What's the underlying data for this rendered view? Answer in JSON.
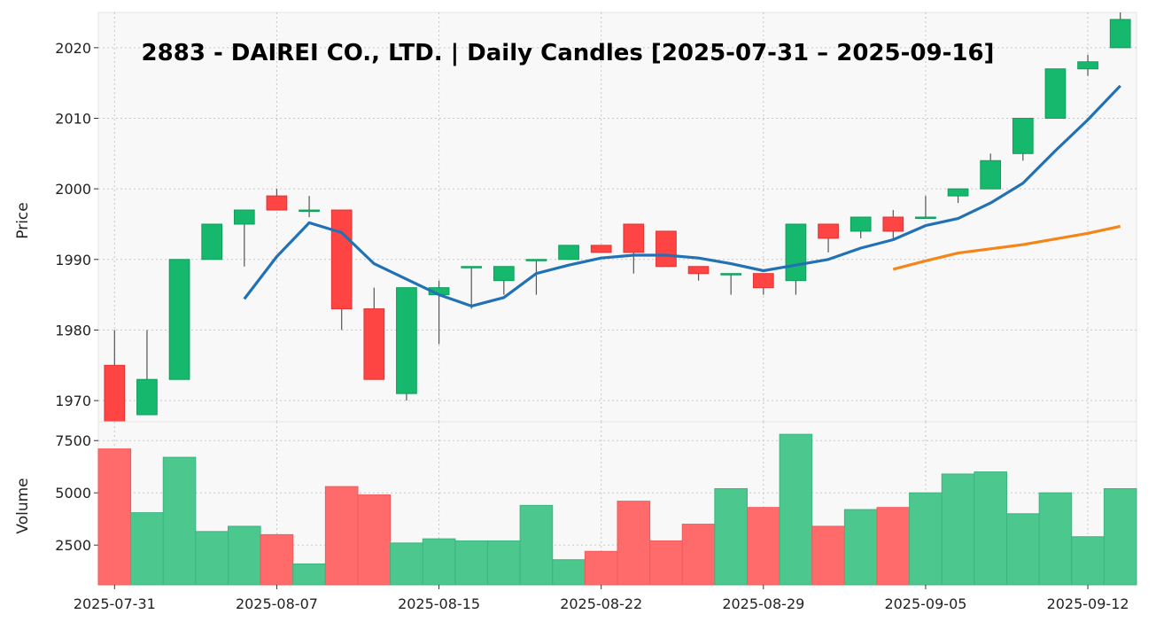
{
  "chart_data": {
    "type": "candlestick",
    "title": "2883 - DAIREI CO., LTD. | Daily Candles [2025-07-31 – 2025-09-16]",
    "ylabel": "Price",
    "volume_label": "Volume",
    "colors": {
      "up": "#16b86d",
      "down": "#ff4444",
      "up_volume": "#4cc78e",
      "down_volume": "#ff6b6b",
      "ma_short": "#2171b5",
      "ma_long": "#f58518",
      "wick": "#555555",
      "panel_bg": "#f8f8f8"
    },
    "price_ylim": [
      1967,
      2025
    ],
    "price_yticks": [
      1970,
      1980,
      1990,
      2000,
      2010,
      2020
    ],
    "price_ytick_labels": [
      "1970",
      "1980",
      "1990",
      "2000",
      "2010",
      "2020"
    ],
    "volume_ylim": [
      600,
      8400
    ],
    "volume_yticks": [
      2500,
      5000,
      7500
    ],
    "volume_ytick_labels": [
      "2500",
      "5000",
      "7500"
    ],
    "xtick_labels": [
      "2025-07-31",
      "2025-08-07",
      "2025-08-15",
      "2025-08-22",
      "2025-08-29",
      "2025-09-05",
      "2025-09-12"
    ],
    "xtick_indices": [
      0,
      5,
      10,
      15,
      20,
      25,
      30
    ],
    "candles": [
      {
        "date": "2025-07-31",
        "open": 1975,
        "high": 1980,
        "low": 1967,
        "close": 1967,
        "volume": 7100
      },
      {
        "date": "2025-08-01",
        "open": 1968,
        "high": 1980,
        "low": 1968,
        "close": 1973,
        "volume": 4050
      },
      {
        "date": "2025-08-04",
        "open": 1973,
        "high": 1990,
        "low": 1973,
        "close": 1990,
        "volume": 6700
      },
      {
        "date": "2025-08-05",
        "open": 1990,
        "high": 1995,
        "low": 1990,
        "close": 1995,
        "volume": 3150
      },
      {
        "date": "2025-08-06",
        "open": 1995,
        "high": 1997,
        "low": 1989,
        "close": 1997,
        "volume": 3400
      },
      {
        "date": "2025-08-07",
        "open": 1999,
        "high": 2000,
        "low": 1997,
        "close": 1997,
        "volume": 3000
      },
      {
        "date": "2025-08-08",
        "open": 1997,
        "high": 1999,
        "low": 1996,
        "close": 1997,
        "volume": 1600
      },
      {
        "date": "2025-08-12",
        "open": 1997,
        "high": 1997,
        "low": 1980,
        "close": 1983,
        "volume": 5300
      },
      {
        "date": "2025-08-13",
        "open": 1983,
        "high": 1986,
        "low": 1973,
        "close": 1973,
        "volume": 4900
      },
      {
        "date": "2025-08-14",
        "open": 1971,
        "high": 1986,
        "low": 1970,
        "close": 1986,
        "volume": 2600
      },
      {
        "date": "2025-08-15",
        "open": 1985,
        "high": 1987,
        "low": 1978,
        "close": 1986,
        "volume": 2800
      },
      {
        "date": "2025-08-18",
        "open": 1989,
        "high": 1989,
        "low": 1983,
        "close": 1989,
        "volume": 2700
      },
      {
        "date": "2025-08-19",
        "open": 1987,
        "high": 1989,
        "low": 1985,
        "close": 1989,
        "volume": 2700
      },
      {
        "date": "2025-08-20",
        "open": 1990,
        "high": 1990,
        "low": 1985,
        "close": 1990,
        "volume": 4400
      },
      {
        "date": "2025-08-21",
        "open": 1990,
        "high": 1992,
        "low": 1990,
        "close": 1992,
        "volume": 1800
      },
      {
        "date": "2025-08-22",
        "open": 1992,
        "high": 1992,
        "low": 1991,
        "close": 1991,
        "volume": 2200
      },
      {
        "date": "2025-08-25",
        "open": 1995,
        "high": 1995,
        "low": 1988,
        "close": 1991,
        "volume": 4600
      },
      {
        "date": "2025-08-26",
        "open": 1994,
        "high": 1994,
        "low": 1989,
        "close": 1989,
        "volume": 2700
      },
      {
        "date": "2025-08-27",
        "open": 1989,
        "high": 1989,
        "low": 1987,
        "close": 1988,
        "volume": 3500
      },
      {
        "date": "2025-08-28",
        "open": 1988,
        "high": 1988,
        "low": 1985,
        "close": 1988,
        "volume": 5200
      },
      {
        "date": "2025-08-29",
        "open": 1988,
        "high": 1988,
        "low": 1985,
        "close": 1986,
        "volume": 4300
      },
      {
        "date": "2025-09-01",
        "open": 1987,
        "high": 1995,
        "low": 1985,
        "close": 1995,
        "volume": 7800
      },
      {
        "date": "2025-09-02",
        "open": 1995,
        "high": 1995,
        "low": 1991,
        "close": 1993,
        "volume": 3400
      },
      {
        "date": "2025-09-03",
        "open": 1994,
        "high": 1996,
        "low": 1993,
        "close": 1996,
        "volume": 4200
      },
      {
        "date": "2025-09-04",
        "open": 1996,
        "high": 1997,
        "low": 1993,
        "close": 1994,
        "volume": 4300
      },
      {
        "date": "2025-09-05",
        "open": 1996,
        "high": 1999,
        "low": 1996,
        "close": 1996,
        "volume": 5000
      },
      {
        "date": "2025-09-08",
        "open": 1999,
        "high": 2000,
        "low": 1998,
        "close": 2000,
        "volume": 5900
      },
      {
        "date": "2025-09-09",
        "open": 2000,
        "high": 2005,
        "low": 2000,
        "close": 2004,
        "volume": 6000
      },
      {
        "date": "2025-09-10",
        "open": 2005,
        "high": 2010,
        "low": 2004,
        "close": 2010,
        "volume": 4000
      },
      {
        "date": "2025-09-11",
        "open": 2010,
        "high": 2017,
        "low": 2010,
        "close": 2017,
        "volume": 5000
      },
      {
        "date": "2025-09-12",
        "open": 2017,
        "high": 2019,
        "low": 2016,
        "close": 2018,
        "volume": 2900
      },
      {
        "date": "2025-09-16",
        "open": 2020,
        "high": 2025,
        "low": 2020,
        "close": 2024,
        "volume": 5200
      }
    ],
    "ma_short": [
      null,
      null,
      null,
      null,
      1984.4,
      1990.4,
      1995.2,
      1993.8,
      1989.4,
      1987.2,
      1985.0,
      1983.4,
      1984.6,
      1988.0,
      1989.2,
      1990.2,
      1990.6,
      1990.6,
      1990.2,
      1989.4,
      1988.4,
      1989.2,
      1990.0,
      1991.6,
      1992.8,
      1994.8,
      1995.8,
      1998.0,
      2000.8,
      2005.4,
      2009.8,
      2014.6
    ],
    "ma_long": [
      null,
      null,
      null,
      null,
      null,
      null,
      null,
      null,
      null,
      null,
      null,
      null,
      null,
      null,
      null,
      null,
      null,
      null,
      null,
      null,
      null,
      null,
      null,
      null,
      1988.6,
      1989.8,
      1990.9,
      1991.5,
      1992.1,
      1992.9,
      1993.7,
      1994.7
    ]
  }
}
